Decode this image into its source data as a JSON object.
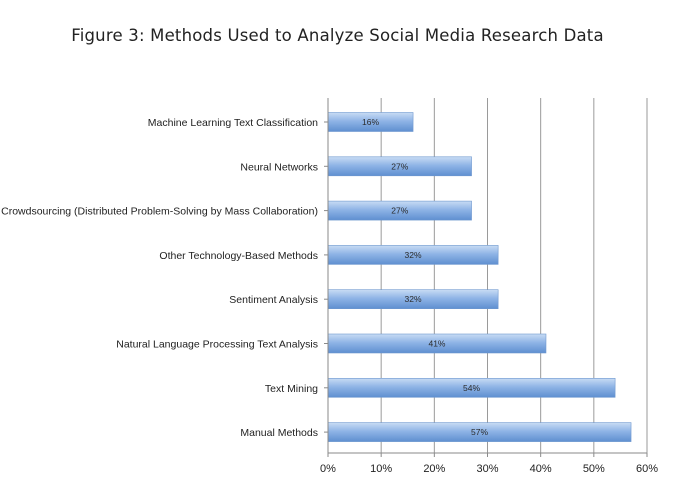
{
  "chart_data": {
    "type": "bar",
    "orientation": "horizontal",
    "title": "Figure 3: Methods Used to Analyze Social Media Research Data",
    "xlabel": "",
    "ylabel": "",
    "xlim": [
      0,
      60
    ],
    "ticks": [
      0,
      10,
      20,
      30,
      40,
      50,
      60
    ],
    "tick_labels": [
      "0%",
      "10%",
      "20%",
      "30%",
      "40%",
      "50%",
      "60%"
    ],
    "grid": true,
    "legend": "none",
    "categories": [
      "Machine Learning Text Classification",
      "Neural Networks",
      "Crowdsourcing (Distributed Problem-Solving by Mass Collaboration)",
      "Other Technology-Based Methods",
      "Sentiment Analysis",
      "Natural Language Processing Text Analysis",
      "Text Mining",
      "Manual Methods"
    ],
    "values": [
      16,
      27,
      27,
      32,
      32,
      41,
      54,
      57
    ],
    "data_labels": [
      "16%",
      "27%",
      "27%",
      "32%",
      "32%",
      "41%",
      "54%",
      "57%"
    ],
    "colors": {
      "bar_light": "#c8dcf4",
      "bar_mid": "#8fb4e6",
      "bar_dark": "#5f8fd0",
      "bar_edge": "#6f98cf",
      "axis": "#8a8a8a",
      "grid": "#9a9a9a"
    }
  }
}
